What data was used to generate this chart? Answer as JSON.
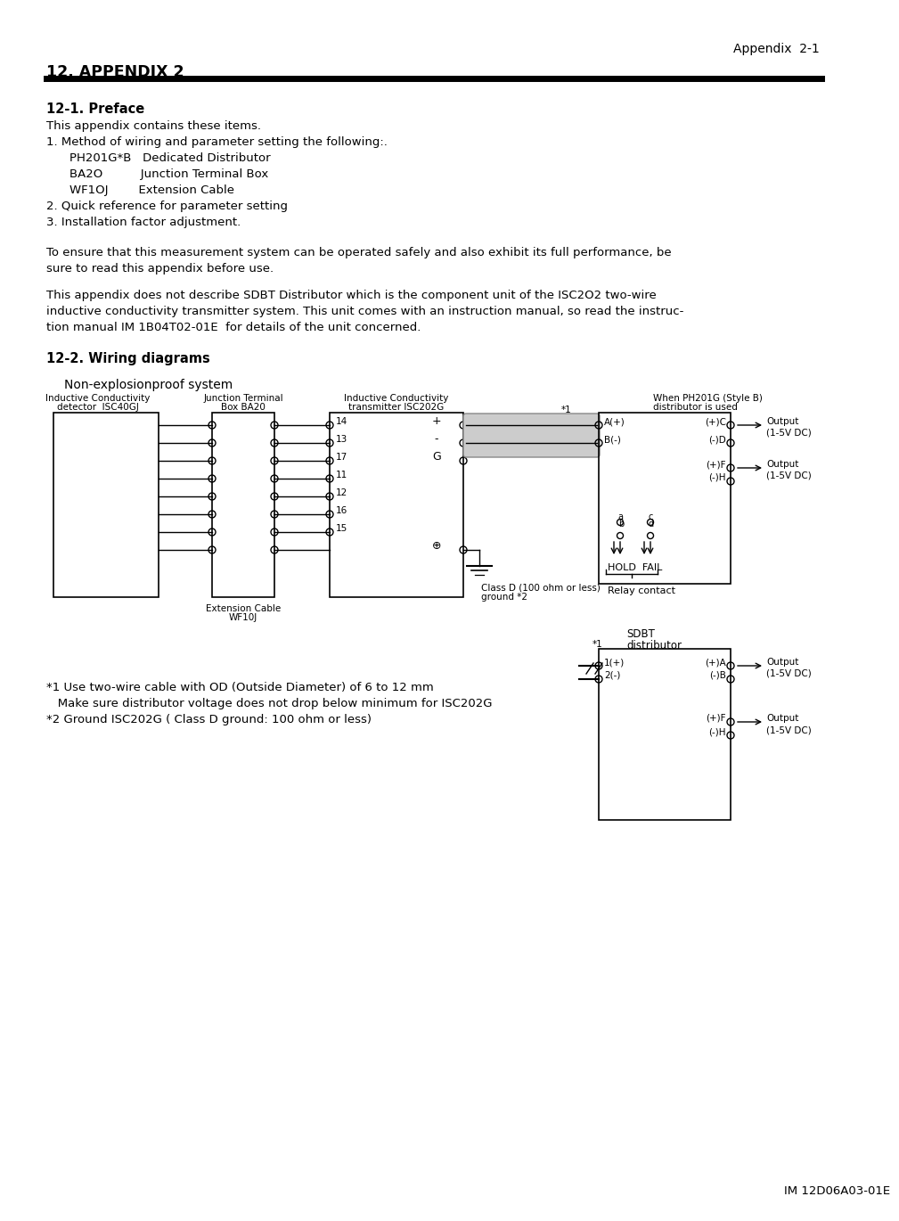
{
  "page_header_right": "Appendix  2-1",
  "section_title": "12. APPENDIX 2",
  "sub1_title": "12-1. Preface",
  "sub2_title": "12-2. Wiring diagrams",
  "diagram_subtitle": "Non-explosionproof system",
  "footnote1a": "*1 Use two-wire cable with OD (Outside Diameter) of 6 to 12 mm",
  "footnote1b": "   Make sure distributor voltage does not drop below minimum for ISC202G",
  "footnote2": "*2 Ground ISC202G ( Class D ground: 100 ohm or less)",
  "footer": "IM 12D06A03-01E",
  "bg_color": "#ffffff",
  "text_color": "#000000"
}
